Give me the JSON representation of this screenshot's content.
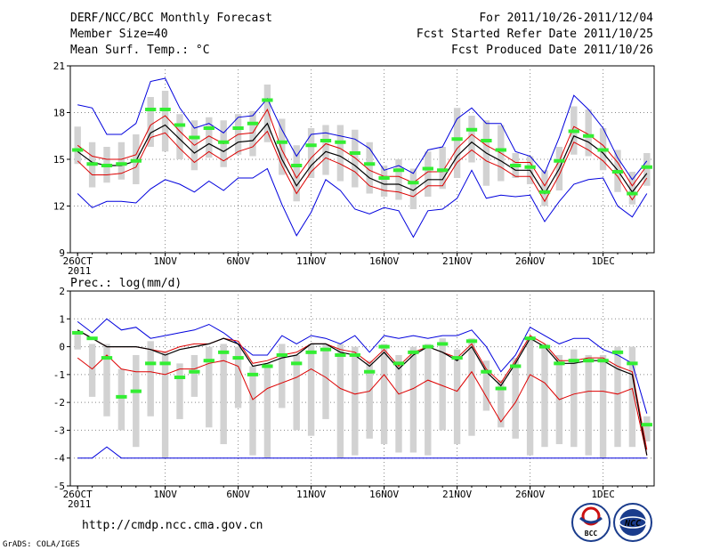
{
  "header": {
    "title": "DERF/NCC/BCC Monthly Forecast",
    "member": "Member Size=40",
    "variable": "Mean Surf. Temp.: °C",
    "period": "For 2011/10/26-2011/12/04",
    "refer": "Fcst Started Refer Date 2011/10/25",
    "produced": "Fcst Produced Date 2011/10/26"
  },
  "footer": {
    "url": "http://cmdp.ncc.cma.gov.cn",
    "credit": "GrADS: COLA/IGES",
    "logo_bcc": "BCC",
    "logo_ncc": "NCC"
  },
  "colors": {
    "box": "#d2d2d2",
    "median": "#33ee33",
    "mean": "#000000",
    "envelope": "#0000dd",
    "spread": "#dd0000",
    "grid": "#888888"
  },
  "chart_data": [
    {
      "type": "line",
      "title": "Mean Surf. Temp.: °C",
      "ylabel": "°C",
      "ylim": [
        9,
        21
      ],
      "yticks": [
        "9",
        "12",
        "15",
        "18",
        "21"
      ],
      "xticks": [
        "26OCT",
        "1NOV",
        "6NOV",
        "11NOV",
        "16NOV",
        "21NOV",
        "26NOV",
        "1DEC"
      ],
      "xtick_year": "2011",
      "x_day_positions": [
        0,
        6,
        11,
        16,
        21,
        26,
        31,
        36
      ],
      "days": 39,
      "series": [
        {
          "name": "mean",
          "values": [
            15.5,
            14.8,
            14.6,
            14.6,
            14.9,
            16.7,
            17.2,
            16.3,
            15.4,
            16.0,
            15.5,
            16.1,
            16.2,
            17.3,
            15.0,
            13.3,
            14.6,
            15.5,
            15.2,
            14.6,
            13.8,
            13.4,
            13.4,
            13.0,
            13.7,
            13.7,
            15.2,
            16.1,
            15.4,
            14.9,
            14.3,
            14.3,
            12.8,
            14.4,
            16.5,
            16.1,
            15.4,
            14.3,
            12.9,
            14.1
          ]
        },
        {
          "name": "upper_spread",
          "values": [
            15.9,
            15.2,
            15.0,
            15.0,
            15.3,
            17.2,
            17.8,
            16.8,
            15.9,
            16.5,
            16.0,
            16.6,
            16.7,
            18.2,
            15.6,
            13.8,
            15.1,
            16.0,
            15.7,
            15.1,
            14.3,
            13.9,
            13.9,
            13.5,
            14.2,
            14.2,
            15.7,
            16.6,
            15.9,
            15.4,
            14.8,
            14.8,
            13.3,
            14.9,
            17.1,
            16.6,
            15.9,
            14.8,
            13.3,
            14.6
          ]
        },
        {
          "name": "lower_spread",
          "values": [
            14.9,
            14.0,
            14.0,
            14.1,
            14.5,
            16.4,
            16.7,
            15.7,
            14.8,
            15.5,
            14.9,
            15.5,
            15.8,
            16.8,
            14.6,
            12.8,
            14.2,
            15.1,
            14.7,
            14.2,
            13.3,
            13.0,
            12.9,
            12.6,
            13.3,
            13.3,
            14.8,
            15.6,
            14.9,
            14.5,
            13.9,
            13.9,
            12.3,
            14.0,
            16.1,
            15.6,
            14.9,
            13.9,
            12.4,
            13.8
          ]
        },
        {
          "name": "max",
          "values": [
            18.5,
            18.3,
            16.6,
            16.6,
            17.3,
            20.0,
            20.2,
            18.3,
            17.0,
            17.3,
            16.7,
            17.7,
            17.8,
            18.9,
            16.9,
            15.2,
            16.6,
            16.7,
            16.5,
            16.3,
            15.7,
            14.3,
            14.6,
            14.1,
            15.6,
            15.8,
            17.6,
            18.3,
            17.3,
            17.3,
            15.5,
            15.2,
            14.1,
            16.4,
            19.1,
            18.2,
            17.0,
            15.1,
            13.7,
            14.9
          ]
        },
        {
          "name": "min",
          "values": [
            12.8,
            11.9,
            12.3,
            12.3,
            12.2,
            13.1,
            13.7,
            13.4,
            12.9,
            13.6,
            13.0,
            13.8,
            13.8,
            14.4,
            12.1,
            10.1,
            11.6,
            13.7,
            13.0,
            11.8,
            11.5,
            11.9,
            11.7,
            10.0,
            11.7,
            11.8,
            12.5,
            14.3,
            12.5,
            12.7,
            12.6,
            12.7,
            11.0,
            12.3,
            13.4,
            13.7,
            13.8,
            12.0,
            11.3,
            12.8
          ]
        },
        {
          "name": "median",
          "values": [
            15.6,
            14.7,
            14.6,
            14.7,
            14.9,
            18.2,
            18.2,
            17.2,
            16.4,
            17.0,
            16.1,
            17.0,
            17.3,
            18.8,
            16.1,
            14.6,
            15.9,
            16.2,
            16.1,
            15.4,
            14.7,
            13.8,
            14.3,
            13.5,
            14.4,
            14.3,
            16.3,
            16.9,
            16.2,
            15.6,
            14.6,
            14.5,
            12.9,
            14.9,
            16.8,
            16.5,
            15.6,
            14.2,
            12.8,
            14.5
          ]
        },
        {
          "name": "box_high",
          "values": [
            17.1,
            16.1,
            15.8,
            16.1,
            16.6,
            19.0,
            19.4,
            17.9,
            17.5,
            17.7,
            17.5,
            17.9,
            18.1,
            19.8,
            17.6,
            15.9,
            17.0,
            17.2,
            17.2,
            16.9,
            16.1,
            14.6,
            15.0,
            14.4,
            15.5,
            15.8,
            18.3,
            17.8,
            17.5,
            17.2,
            15.4,
            15.2,
            14.3,
            15.8,
            18.4,
            18.2,
            17.0,
            15.6,
            14.2,
            15.4
          ]
        },
        {
          "name": "box_low",
          "values": [
            14.7,
            13.2,
            13.5,
            13.7,
            13.4,
            15.8,
            15.5,
            15.0,
            14.3,
            15.1,
            14.5,
            15.3,
            15.2,
            16.1,
            14.0,
            12.3,
            13.8,
            14.0,
            13.6,
            13.2,
            12.8,
            12.6,
            12.4,
            11.8,
            12.6,
            13.1,
            13.8,
            14.8,
            13.3,
            13.6,
            13.8,
            13.4,
            12.0,
            13.0,
            15.3,
            15.2,
            14.3,
            12.9,
            12.1,
            13.3
          ]
        }
      ]
    },
    {
      "type": "line",
      "title": "Prec.: log(mm/d)",
      "ylabel": "log(mm/d)",
      "ylim": [
        -5,
        2
      ],
      "yticks": [
        "-5",
        "-4",
        "-3",
        "-2",
        "-1",
        "0",
        "1",
        "2"
      ],
      "xticks": [
        "26OCT",
        "1NOV",
        "6NOV",
        "11NOV",
        "16NOV",
        "21NOV",
        "26NOV",
        "1DEC"
      ],
      "xtick_year": "2011",
      "x_day_positions": [
        0,
        6,
        11,
        16,
        21,
        26,
        31,
        36
      ],
      "days": 39,
      "series": [
        {
          "name": "mean",
          "values": [
            0.6,
            0.3,
            0.0,
            0.0,
            0.0,
            -0.1,
            -0.3,
            -0.1,
            0.0,
            0.1,
            0.3,
            0.1,
            -0.7,
            -0.6,
            -0.4,
            -0.3,
            0.1,
            0.1,
            -0.2,
            -0.3,
            -0.7,
            -0.2,
            -0.8,
            -0.3,
            0.0,
            -0.2,
            -0.5,
            0.0,
            -0.9,
            -1.4,
            -0.6,
            0.3,
            0.0,
            -0.6,
            -0.6,
            -0.5,
            -0.5,
            -0.8,
            -1.0,
            -3.9
          ]
        },
        {
          "name": "upper_spread",
          "values": [
            0.6,
            0.3,
            0.0,
            0.0,
            0.0,
            -0.1,
            -0.2,
            0.0,
            0.1,
            0.1,
            0.3,
            0.2,
            -0.6,
            -0.5,
            -0.3,
            -0.2,
            0.1,
            0.1,
            -0.1,
            -0.2,
            -0.6,
            -0.1,
            -0.7,
            -0.2,
            0.0,
            -0.2,
            -0.4,
            0.1,
            -0.8,
            -1.3,
            -0.5,
            0.4,
            0.1,
            -0.5,
            -0.5,
            -0.4,
            -0.4,
            -0.7,
            -0.9,
            -3.7
          ]
        },
        {
          "name": "lower_spread",
          "values": [
            -0.4,
            -0.8,
            -0.3,
            -0.8,
            -0.9,
            -0.9,
            -1.0,
            -0.8,
            -0.8,
            -0.6,
            -0.5,
            -0.7,
            -1.9,
            -1.5,
            -1.3,
            -1.1,
            -0.8,
            -1.1,
            -1.5,
            -1.7,
            -1.6,
            -1.0,
            -1.7,
            -1.5,
            -1.2,
            -1.4,
            -1.6,
            -0.9,
            -1.8,
            -2.7,
            -2.0,
            -1.0,
            -1.3,
            -1.9,
            -1.7,
            -1.6,
            -1.6,
            -1.7,
            -1.5,
            -3.9
          ]
        },
        {
          "name": "max",
          "values": [
            0.9,
            0.5,
            1.0,
            0.6,
            0.7,
            0.3,
            0.4,
            0.5,
            0.6,
            0.8,
            0.5,
            0.1,
            -0.3,
            -0.3,
            0.4,
            0.1,
            0.4,
            0.3,
            0.1,
            0.4,
            -0.2,
            0.4,
            0.3,
            0.4,
            0.3,
            0.4,
            0.4,
            0.6,
            0.0,
            -0.9,
            -0.3,
            0.7,
            0.4,
            0.1,
            0.3,
            0.3,
            -0.1,
            -0.3,
            -0.6,
            -2.4
          ]
        },
        {
          "name": "min",
          "values": [
            -4.0,
            -4.0,
            -3.6,
            -4.0,
            -4.0,
            -4.0,
            -4.0,
            -4.0,
            -4.0,
            -4.0,
            -4.0,
            -4.0,
            -4.0,
            -4.0,
            -4.0,
            -4.0,
            -4.0,
            -4.0,
            -4.0,
            -4.0,
            -4.0,
            -4.0,
            -4.0,
            -4.0,
            -4.0,
            -4.0,
            -4.0,
            -4.0,
            -4.0,
            -4.0,
            -4.0,
            -4.0,
            -4.0,
            -4.0,
            -4.0,
            -4.0,
            -4.0,
            -4.0,
            -4.0,
            -4.0
          ]
        },
        {
          "name": "median",
          "values": [
            0.5,
            0.3,
            -0.4,
            -1.8,
            -1.6,
            -0.6,
            -0.6,
            -1.1,
            -0.9,
            -0.5,
            -0.2,
            -0.4,
            -1.0,
            -0.7,
            -0.3,
            -0.6,
            -0.2,
            -0.1,
            -0.3,
            -0.3,
            -0.9,
            0.0,
            -0.6,
            -0.2,
            0.0,
            0.1,
            -0.4,
            0.2,
            -0.9,
            -1.5,
            -0.7,
            0.3,
            0.0,
            -0.6,
            -0.5,
            -0.5,
            -0.5,
            -0.2,
            -0.6,
            -2.8
          ]
        },
        {
          "name": "box_high",
          "values": [
            0.5,
            0.1,
            0.1,
            -0.8,
            -0.3,
            0.2,
            -0.2,
            -0.6,
            -0.3,
            0.0,
            0.1,
            0.0,
            -0.7,
            -0.6,
            0.1,
            -0.3,
            0.1,
            0.1,
            0.1,
            0.0,
            -0.5,
            0.1,
            -0.3,
            0.0,
            0.1,
            0.3,
            -0.1,
            0.3,
            -0.5,
            -1.2,
            -0.4,
            0.3,
            0.1,
            -0.3,
            -0.1,
            -0.3,
            -0.3,
            0.0,
            0.0,
            -2.5
          ]
        },
        {
          "name": "box_low",
          "values": [
            -0.1,
            -1.8,
            -2.5,
            -3.0,
            -3.6,
            -2.5,
            -4.0,
            -2.6,
            -1.8,
            -2.9,
            -3.5,
            -2.2,
            -3.9,
            -4.0,
            -2.2,
            -3.0,
            -3.2,
            -2.6,
            -4.0,
            -3.9,
            -3.3,
            -3.5,
            -3.8,
            -3.8,
            -3.9,
            -3.0,
            -3.5,
            -3.2,
            -2.3,
            -2.9,
            -3.3,
            -3.9,
            -3.6,
            -3.5,
            -3.6,
            -3.9,
            -4.0,
            -3.6,
            -3.6,
            -3.4
          ]
        }
      ]
    }
  ]
}
